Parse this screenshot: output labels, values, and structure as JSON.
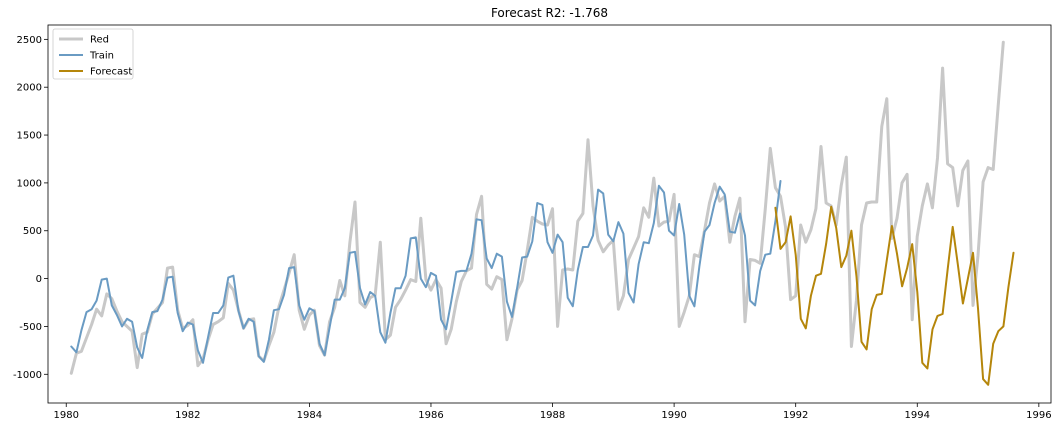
{
  "chart_data": {
    "type": "line",
    "title": "Forecast R2: -1.768",
    "xlabel": "",
    "ylabel": "",
    "xlim": [
      1979.7,
      1996.2
    ],
    "ylim": [
      -1300,
      2650
    ],
    "x_ticks": [
      1980,
      1982,
      1984,
      1986,
      1988,
      1990,
      1992,
      1994,
      1996
    ],
    "y_ticks": [
      -1000,
      -500,
      0,
      500,
      1000,
      1500,
      2000,
      2500
    ],
    "grid": false,
    "legend_position": "top-left",
    "series": [
      {
        "name": "Red",
        "color": "#c8c8c8",
        "width": 3,
        "x_start": 1980.0833,
        "x_step": 0.08333,
        "values": [
          -990,
          -780,
          -760,
          -620,
          -480,
          -320,
          -390,
          -160,
          -210,
          -340,
          -450,
          -500,
          -550,
          -930,
          -580,
          -560,
          -370,
          -310,
          -250,
          110,
          120,
          -330,
          -520,
          -490,
          -430,
          -910,
          -840,
          -640,
          -480,
          -450,
          -410,
          -50,
          -120,
          -330,
          -520,
          -430,
          -420,
          -810,
          -860,
          -700,
          -560,
          -290,
          -120,
          60,
          250,
          -330,
          -530,
          -380,
          -330,
          -700,
          -800,
          -450,
          -300,
          -20,
          -180,
          380,
          800,
          -250,
          -300,
          -200,
          -170,
          380,
          -640,
          -590,
          -300,
          -220,
          -120,
          -10,
          -30,
          630,
          -10,
          -120,
          -10,
          -100,
          -680,
          -530,
          -240,
          -30,
          80,
          110,
          670,
          860,
          -60,
          -110,
          20,
          -10,
          -640,
          -420,
          -120,
          -20,
          290,
          640,
          600,
          570,
          560,
          730,
          -500,
          90,
          100,
          90,
          600,
          680,
          1450,
          760,
          400,
          280,
          350,
          400,
          -320,
          -180,
          200,
          320,
          440,
          740,
          640,
          1050,
          550,
          590,
          600,
          880,
          -500,
          -350,
          -180,
          250,
          230,
          500,
          790,
          990,
          810,
          860,
          380,
          650,
          840,
          -450,
          200,
          190,
          160,
          730,
          1360,
          950,
          860,
          540,
          -220,
          -180,
          560,
          380,
          510,
          730,
          1380,
          790,
          760,
          560,
          970,
          1270,
          -710,
          -230,
          560,
          790,
          800,
          800,
          1590,
          1880,
          420,
          630,
          1000,
          1090,
          -430,
          440,
          760,
          990,
          740,
          1260,
          2200,
          1200,
          1160,
          760,
          1130,
          1230,
          -280,
          240,
          1010,
          1160,
          1140,
          1820,
          2470
        ]
      },
      {
        "name": "Train",
        "color": "#6a9bc3",
        "width": 2,
        "x_start": 1980.0833,
        "x_step": 0.08333,
        "values": [
          -710,
          -770,
          -540,
          -350,
          -320,
          -230,
          -10,
          0,
          -280,
          -380,
          -500,
          -420,
          -450,
          -720,
          -830,
          -540,
          -350,
          -340,
          -220,
          10,
          20,
          -360,
          -550,
          -460,
          -480,
          -750,
          -880,
          -610,
          -360,
          -360,
          -280,
          10,
          30,
          -340,
          -520,
          -420,
          -450,
          -810,
          -870,
          -640,
          -330,
          -320,
          -170,
          110,
          120,
          -280,
          -430,
          -310,
          -340,
          -680,
          -800,
          -510,
          -220,
          -220,
          -100,
          270,
          280,
          -100,
          -270,
          -140,
          -180,
          -560,
          -670,
          -360,
          -100,
          -100,
          30,
          420,
          430,
          0,
          -90,
          60,
          30,
          -430,
          -530,
          -240,
          70,
          80,
          80,
          260,
          620,
          610,
          210,
          110,
          260,
          230,
          -240,
          -400,
          -100,
          220,
          230,
          390,
          790,
          770,
          380,
          270,
          460,
          380,
          -200,
          -290,
          90,
          330,
          330,
          450,
          930,
          890,
          460,
          390,
          590,
          470,
          -150,
          -250,
          150,
          380,
          370,
          580,
          970,
          900,
          500,
          450,
          780,
          460,
          -180,
          -290,
          130,
          490,
          560,
          790,
          960,
          880,
          490,
          480,
          680,
          450,
          -230,
          -280,
          80,
          250,
          260,
          600,
          1020
        ]
      },
      {
        "name": "Forecast",
        "color": "#b5860b",
        "width": 2,
        "x_start": 1991.6667,
        "x_step": 0.08333,
        "values": [
          740,
          310,
          380,
          650,
          250,
          -420,
          -520,
          -180,
          30,
          50,
          360,
          750,
          530,
          120,
          240,
          500,
          20,
          -660,
          -740,
          -320,
          -170,
          -160,
          200,
          550,
          260,
          -80,
          110,
          360,
          -140,
          -880,
          -940,
          -530,
          -390,
          -370,
          100,
          540,
          150,
          -260,
          0,
          270,
          -310,
          -1050,
          -1110,
          -680,
          -550,
          -500,
          -90,
          270
        ]
      }
    ]
  }
}
